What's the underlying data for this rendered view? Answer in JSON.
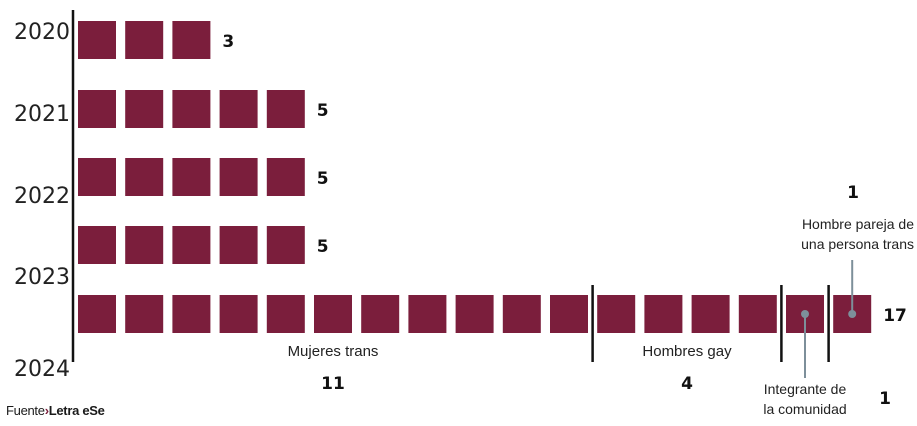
{
  "chart_data": {
    "type": "bar",
    "subtype": "unit-pictogram",
    "categories": [
      "2020",
      "2021",
      "2022",
      "2023",
      "2024"
    ],
    "values": [
      3,
      5,
      5,
      5,
      17
    ],
    "total_labels": [
      "3",
      "5",
      "5",
      "5",
      "17"
    ],
    "unit": "one square per case",
    "breakdown_2024": [
      {
        "label": "Mujeres trans",
        "value": 11,
        "value_label": "11"
      },
      {
        "label": "Hombres gay",
        "value": 4,
        "value_label": "4"
      },
      {
        "label": "Integrante de la comunidad",
        "lines": [
          "Integrante de",
          "la comunidad"
        ],
        "value": 1,
        "value_label": "1"
      },
      {
        "label": "Hombre pareja de una persona trans",
        "lines": [
          "Hombre pareja de",
          "una persona trans"
        ],
        "value": 1,
        "value_label": "1"
      }
    ],
    "colors": {
      "square": "#7b1e3c",
      "marker": "#7d8f9a",
      "axis": "#111111"
    }
  },
  "source": {
    "prefix": "Fuente",
    "arrow": "›",
    "name": "Letra eSe"
  }
}
